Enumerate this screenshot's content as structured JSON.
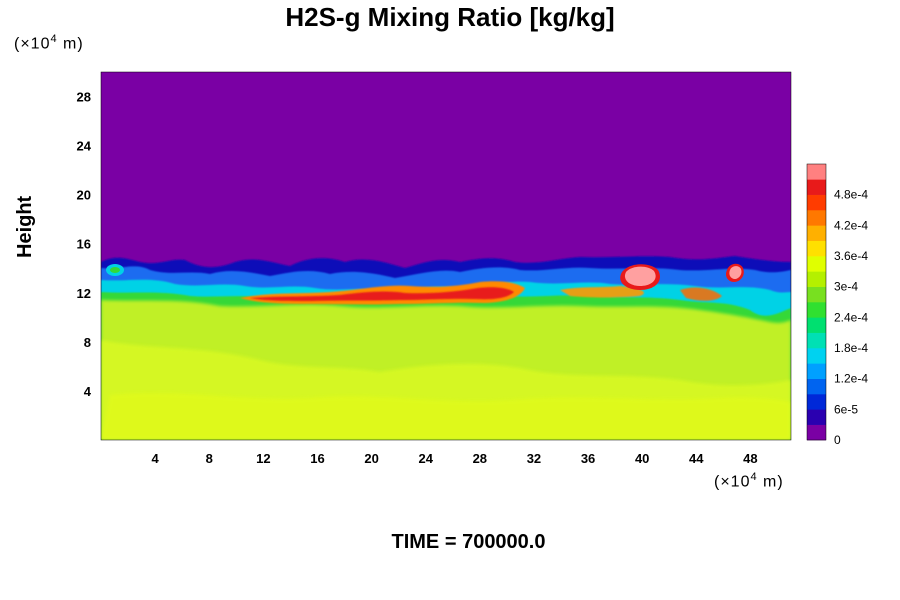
{
  "chart_data": {
    "type": "heatmap",
    "title": "H2S-g Mixing Ratio [kg/kg]",
    "ylabel": "Height",
    "xlabel": "",
    "x_unit": {
      "prefix": "(×10",
      "exp": "4",
      "suffix": " m)"
    },
    "y_unit": {
      "prefix": "(×10",
      "exp": "4",
      "suffix": " m)"
    },
    "footer": "TIME = 700000.0",
    "xlim": [
      0,
      51
    ],
    "ylim": [
      0,
      30
    ],
    "x_ticks": [
      "4",
      "8",
      "12",
      "16",
      "20",
      "24",
      "28",
      "32",
      "36",
      "40",
      "44",
      "48"
    ],
    "y_ticks": [
      "4",
      "8",
      "12",
      "16",
      "20",
      "24",
      "28"
    ],
    "colorbar": {
      "labels": [
        "0",
        "6e-5",
        "1.2e-4",
        "1.8e-4",
        "2.4e-4",
        "3e-4",
        "3.6e-4",
        "4.2e-4",
        "4.8e-4"
      ],
      "range": [
        0,
        0.00054
      ],
      "colors": [
        "#7a00a4",
        "#2a00b0",
        "#0028d8",
        "#0064f0",
        "#00a0ff",
        "#00d2f0",
        "#00e0b4",
        "#00e070",
        "#30e030",
        "#78e020",
        "#b4f000",
        "#e0ff00",
        "#ffe000",
        "#ffb000",
        "#ff7800",
        "#ff3c00",
        "#e81a1a",
        "#ff8080"
      ]
    },
    "field_description": {
      "lower_layer_value": 0.00033,
      "upper_layer_value": 0,
      "interface_height_range": [
        11,
        15
      ],
      "high_value_band_height": [
        10.5,
        12.5
      ],
      "hotspots": [
        {
          "x": 40,
          "y": 13,
          "value": 0.00052
        },
        {
          "x": 47,
          "y": 13.7,
          "value": 0.00052
        }
      ]
    }
  }
}
